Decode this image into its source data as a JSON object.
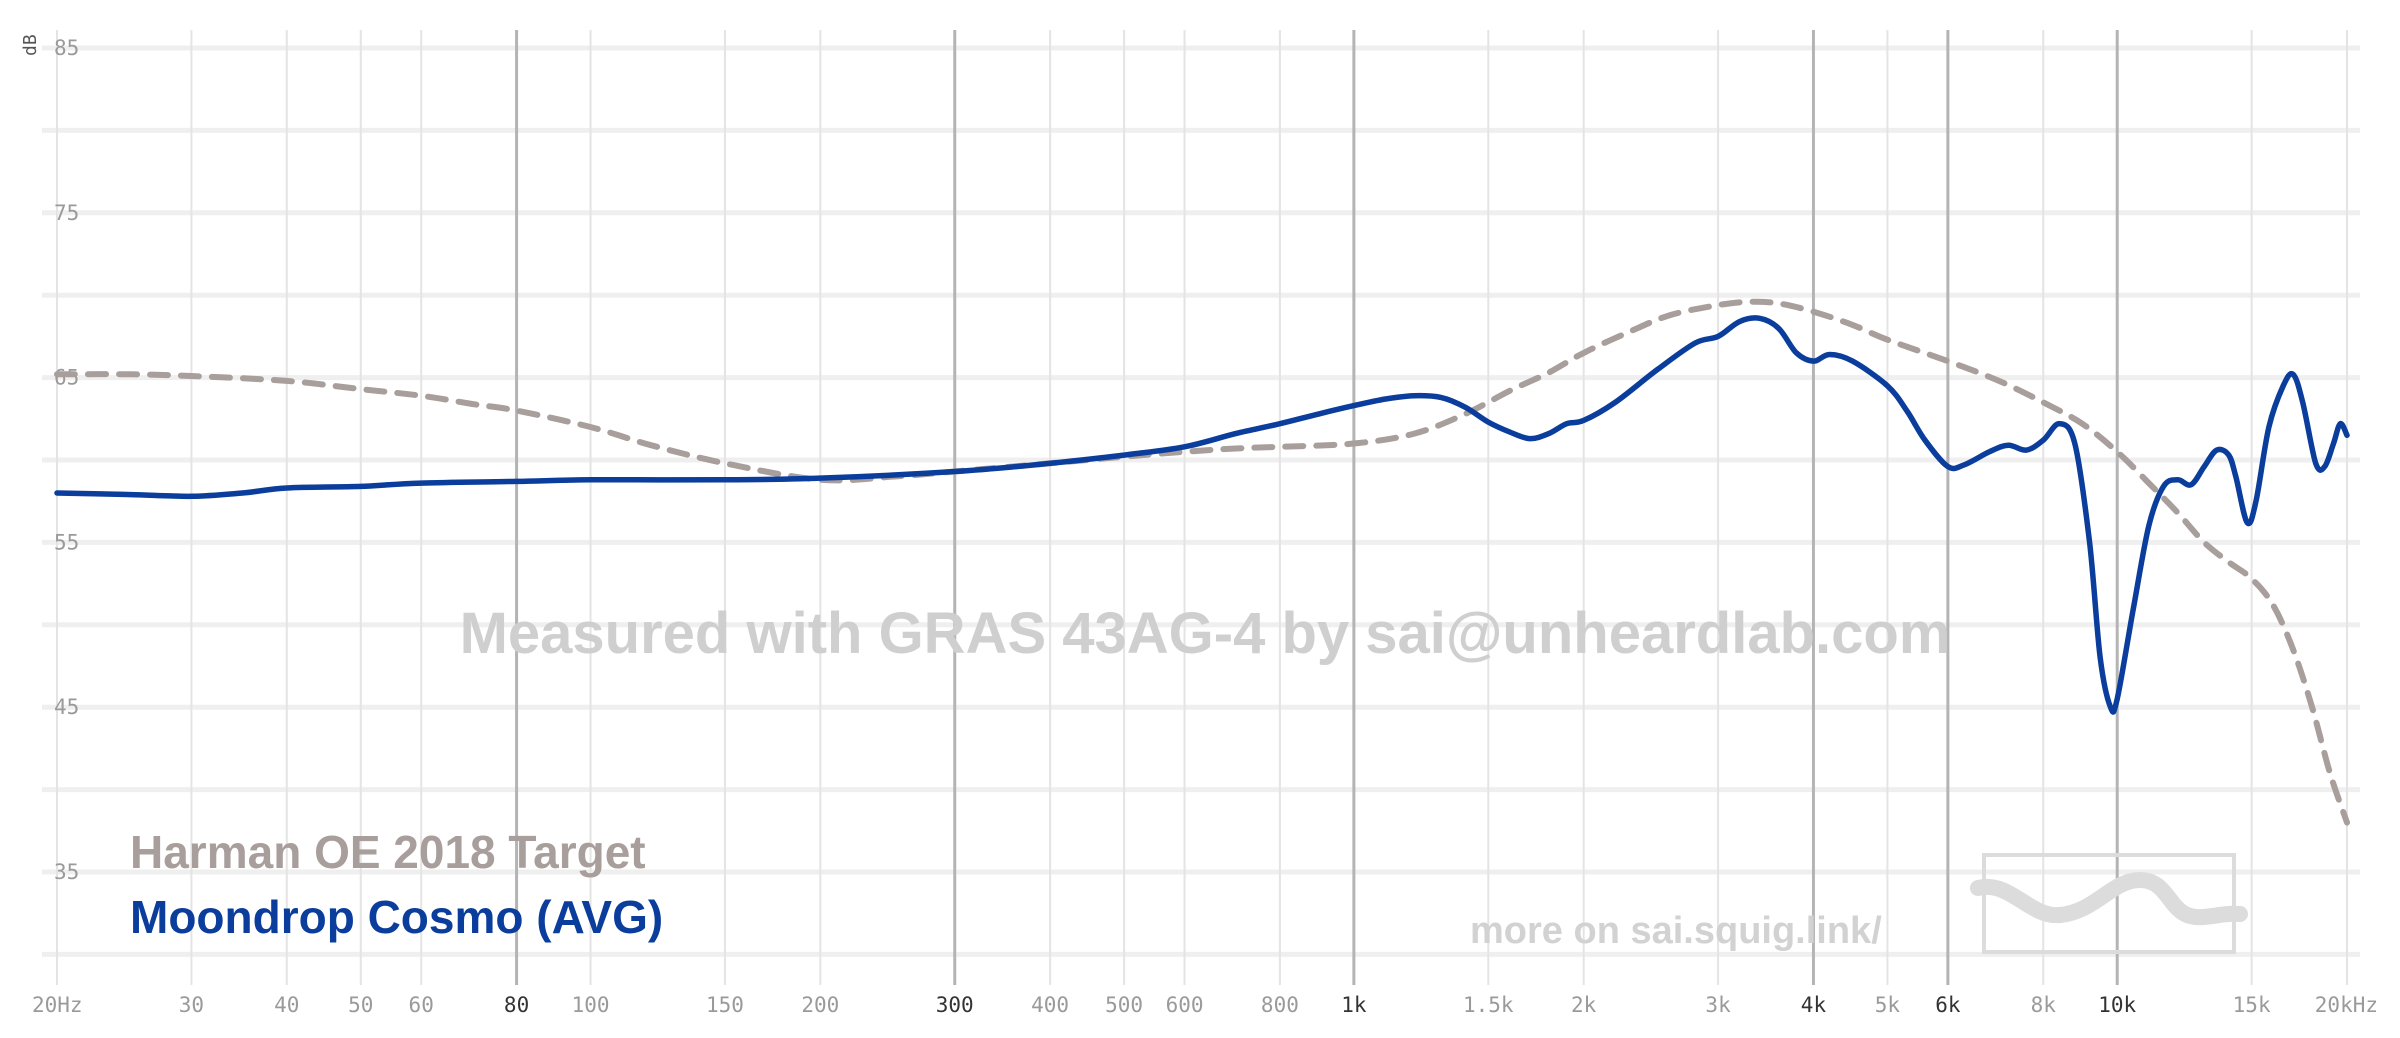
{
  "chart_data": {
    "type": "line",
    "x_scale": "log",
    "xlim": [
      20,
      20000
    ],
    "ylim": [
      30,
      86
    ],
    "y_unit": "dB",
    "y_ticks": [
      85,
      75,
      65,
      55,
      45,
      35
    ],
    "x_ticks": [
      {
        "v": 20,
        "label": "20Hz",
        "major": false
      },
      {
        "v": 30,
        "label": "30",
        "major": false
      },
      {
        "v": 40,
        "label": "40",
        "major": false
      },
      {
        "v": 50,
        "label": "50",
        "major": false
      },
      {
        "v": 60,
        "label": "60",
        "major": false
      },
      {
        "v": 80,
        "label": "80",
        "major": true
      },
      {
        "v": 100,
        "label": "100",
        "major": false
      },
      {
        "v": 150,
        "label": "150",
        "major": false
      },
      {
        "v": 200,
        "label": "200",
        "major": false
      },
      {
        "v": 300,
        "label": "300",
        "major": true
      },
      {
        "v": 400,
        "label": "400",
        "major": false
      },
      {
        "v": 500,
        "label": "500",
        "major": false
      },
      {
        "v": 600,
        "label": "600",
        "major": false
      },
      {
        "v": 800,
        "label": "800",
        "major": false
      },
      {
        "v": 1000,
        "label": "1k",
        "major": true
      },
      {
        "v": 1500,
        "label": "1.5k",
        "major": false
      },
      {
        "v": 2000,
        "label": "2k",
        "major": false
      },
      {
        "v": 3000,
        "label": "3k",
        "major": false
      },
      {
        "v": 4000,
        "label": "4k",
        "major": true
      },
      {
        "v": 5000,
        "label": "5k",
        "major": false
      },
      {
        "v": 6000,
        "label": "6k",
        "major": true
      },
      {
        "v": 8000,
        "label": "8k",
        "major": false
      },
      {
        "v": 10000,
        "label": "10k",
        "major": true
      },
      {
        "v": 15000,
        "label": "15k",
        "major": false
      },
      {
        "v": 20000,
        "label": "20kHz",
        "major": false
      }
    ],
    "grid": true,
    "legend_position": "bottom-left",
    "series": [
      {
        "name": "Harman OE 2018 Target",
        "color": "#a89e9c",
        "dashed": true,
        "points": [
          [
            20,
            65.2
          ],
          [
            25,
            65.2
          ],
          [
            30,
            65.1
          ],
          [
            40,
            64.8
          ],
          [
            50,
            64.3
          ],
          [
            60,
            63.9
          ],
          [
            70,
            63.4
          ],
          [
            80,
            63.0
          ],
          [
            100,
            62.0
          ],
          [
            120,
            60.9
          ],
          [
            150,
            59.8
          ],
          [
            200,
            58.8
          ],
          [
            250,
            59.0
          ],
          [
            300,
            59.3
          ],
          [
            400,
            59.8
          ],
          [
            500,
            60.2
          ],
          [
            600,
            60.5
          ],
          [
            700,
            60.7
          ],
          [
            800,
            60.8
          ],
          [
            1000,
            61.0
          ],
          [
            1200,
            61.6
          ],
          [
            1400,
            62.8
          ],
          [
            1600,
            64.2
          ],
          [
            1800,
            65.3
          ],
          [
            2000,
            66.5
          ],
          [
            2300,
            67.8
          ],
          [
            2600,
            68.8
          ],
          [
            3000,
            69.4
          ],
          [
            3300,
            69.6
          ],
          [
            3600,
            69.5
          ],
          [
            4000,
            69.0
          ],
          [
            4500,
            68.2
          ],
          [
            5000,
            67.3
          ],
          [
            6000,
            66.0
          ],
          [
            7000,
            64.8
          ],
          [
            8000,
            63.5
          ],
          [
            9000,
            62.2
          ],
          [
            10000,
            60.5
          ],
          [
            11000,
            58.6
          ],
          [
            12000,
            56.8
          ],
          [
            13000,
            55.0
          ],
          [
            14000,
            53.8
          ],
          [
            15000,
            52.8
          ],
          [
            16000,
            51.2
          ],
          [
            17000,
            48.5
          ],
          [
            18000,
            45.0
          ],
          [
            19000,
            41.0
          ],
          [
            20000,
            38.0
          ]
        ]
      },
      {
        "name": "Moondrop Cosmo (AVG)",
        "color": "#0a3d9c",
        "dashed": false,
        "points": [
          [
            20,
            58.0
          ],
          [
            25,
            57.9
          ],
          [
            30,
            57.8
          ],
          [
            35,
            58.0
          ],
          [
            40,
            58.3
          ],
          [
            50,
            58.4
          ],
          [
            60,
            58.6
          ],
          [
            80,
            58.7
          ],
          [
            100,
            58.8
          ],
          [
            150,
            58.8
          ],
          [
            200,
            58.9
          ],
          [
            300,
            59.3
          ],
          [
            400,
            59.8
          ],
          [
            500,
            60.3
          ],
          [
            600,
            60.8
          ],
          [
            700,
            61.6
          ],
          [
            800,
            62.2
          ],
          [
            900,
            62.8
          ],
          [
            1000,
            63.3
          ],
          [
            1100,
            63.7
          ],
          [
            1200,
            63.9
          ],
          [
            1300,
            63.8
          ],
          [
            1400,
            63.2
          ],
          [
            1500,
            62.3
          ],
          [
            1600,
            61.7
          ],
          [
            1700,
            61.3
          ],
          [
            1800,
            61.6
          ],
          [
            1900,
            62.2
          ],
          [
            2000,
            62.4
          ],
          [
            2200,
            63.5
          ],
          [
            2500,
            65.5
          ],
          [
            2800,
            67.1
          ],
          [
            3000,
            67.5
          ],
          [
            3200,
            68.4
          ],
          [
            3400,
            68.6
          ],
          [
            3600,
            68.0
          ],
          [
            3800,
            66.5
          ],
          [
            4000,
            66.0
          ],
          [
            4200,
            66.4
          ],
          [
            4500,
            66.0
          ],
          [
            5000,
            64.5
          ],
          [
            5300,
            63.0
          ],
          [
            5600,
            61.2
          ],
          [
            6000,
            59.6
          ],
          [
            6300,
            59.7
          ],
          [
            6800,
            60.5
          ],
          [
            7200,
            60.9
          ],
          [
            7600,
            60.6
          ],
          [
            8000,
            61.2
          ],
          [
            8400,
            62.2
          ],
          [
            8800,
            61.0
          ],
          [
            9200,
            55.0
          ],
          [
            9500,
            48.0
          ],
          [
            9800,
            45.0
          ],
          [
            10000,
            45.5
          ],
          [
            10500,
            51.0
          ],
          [
            11000,
            56.0
          ],
          [
            11500,
            58.4
          ],
          [
            12000,
            58.8
          ],
          [
            12500,
            58.5
          ],
          [
            13000,
            59.6
          ],
          [
            13500,
            60.6
          ],
          [
            14000,
            60.3
          ],
          [
            14300,
            59.0
          ],
          [
            14800,
            56.2
          ],
          [
            15200,
            57.5
          ],
          [
            15800,
            62.0
          ],
          [
            16500,
            64.5
          ],
          [
            17000,
            65.2
          ],
          [
            17500,
            63.5
          ],
          [
            18200,
            59.8
          ],
          [
            18700,
            59.6
          ],
          [
            19200,
            61.0
          ],
          [
            19600,
            62.2
          ],
          [
            20000,
            61.5
          ]
        ]
      }
    ]
  },
  "watermark": "Measured with GRAS 43AG-4 by sai@unheardlab.com",
  "footer_link": "more on sai.squig.link/",
  "legend": {
    "target_label": "Harman OE 2018 Target",
    "target_color": "#a89e9c",
    "measurement_label": "Moondrop Cosmo (AVG)",
    "measurement_color": "#0a3d9c"
  }
}
